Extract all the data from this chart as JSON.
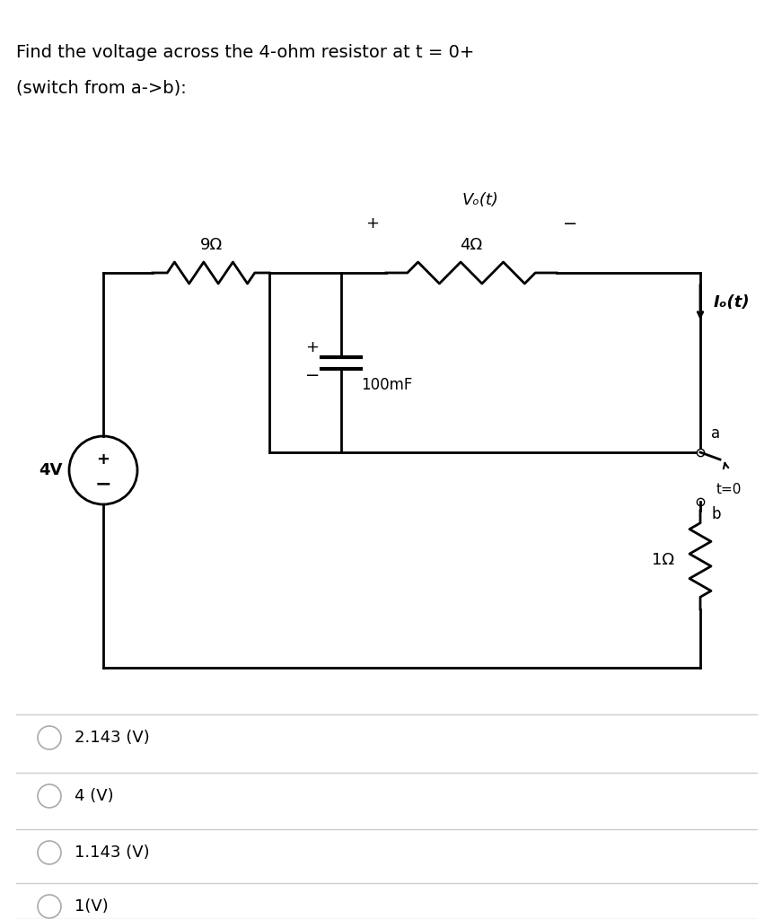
{
  "title_line1": "Find the voltage across the 4-ohm resistor at t = 0+",
  "title_line2": "(switch from a->b):",
  "background_color": "#ffffff",
  "text_color": "#000000",
  "options": [
    "2.143 (V)",
    "4 (V)",
    "1.143 (V)",
    "1(V)"
  ],
  "circuit": {
    "V4_label": "4V",
    "R9_label": "9Ω",
    "R4_label": "4Ω",
    "C_label": "100mF",
    "R1_label": "1Ω",
    "Vo_label": "Vₒ(t)",
    "Io_label": "Iₒ(t)",
    "switch_label": "t=0",
    "node_a": "a",
    "node_b": "b",
    "plus_sign": "+",
    "minus_sign": "-"
  }
}
